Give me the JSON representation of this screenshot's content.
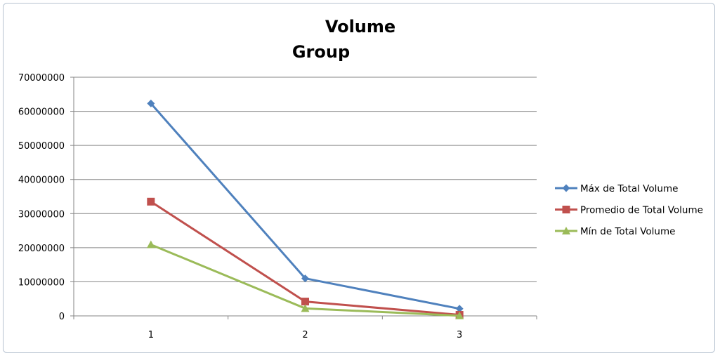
{
  "chart_data": {
    "type": "line",
    "title_lines": [
      "Volume",
      "Group"
    ],
    "xlabel": "",
    "ylabel": "",
    "x": [
      "1",
      "2",
      "3"
    ],
    "ylim": [
      0,
      70000000
    ],
    "yticks": [
      "0",
      "10000000",
      "20000000",
      "30000000",
      "40000000",
      "50000000",
      "60000000",
      "70000000"
    ],
    "grid": true,
    "legend_position": "right",
    "series": [
      {
        "name": "Máx de Total Volume",
        "values": [
          62300000,
          11000000,
          2100000
        ],
        "color": "#4f81bd",
        "marker": "diamond"
      },
      {
        "name": "Promedio de Total Volume",
        "values": [
          33500000,
          4200000,
          300000
        ],
        "color": "#c0504d",
        "marker": "square"
      },
      {
        "name": "Mín de Total Volume",
        "values": [
          20900000,
          2200000,
          50000
        ],
        "color": "#9bbb59",
        "marker": "triangle"
      }
    ]
  }
}
